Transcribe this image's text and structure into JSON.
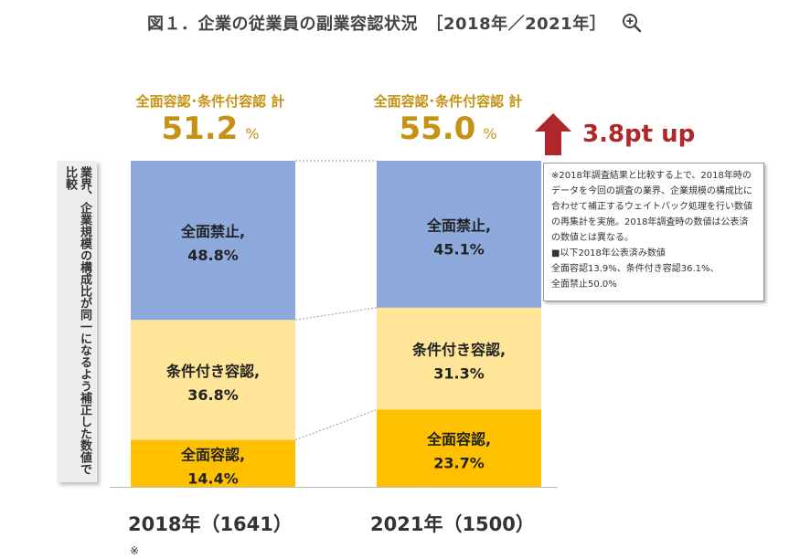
{
  "title": "図１．企業の従業員の副業容認状況　［2018年／2021年］",
  "totals": [
    {
      "label": "全面容認･条件付容認 計",
      "value": "51.2",
      "unit": "%"
    },
    {
      "label": "全面容認･条件付容認 計",
      "value": "55.0",
      "unit": "%"
    }
  ],
  "change": {
    "text": "3.8pt up",
    "arrow_color": "#b0262a"
  },
  "side_note": "業界、企業規模の構成比が同一になるよう補正した数値で比較",
  "note_box": [
    "※2018年調査結果と比較する上で、2018年時のデータを今回の調査の業界、企業規模の構成比に合わせて補正するウェイトバック処理を行い数値の再集計を実施。2018年調査時の数値は公表済の数値とは異なる。",
    "■以下2018年公表済み数値",
    "全面容認13.9%、条件付き容認36.1%、",
    "全面禁止50.0%"
  ],
  "x_labels": [
    {
      "text": "2018年（1641）",
      "mark": "※"
    },
    {
      "text": "2021年（1500）",
      "mark": ""
    }
  ],
  "colors": {
    "prohibited": "#8eaadc",
    "conditional": "#fee598",
    "full": "#ffc000",
    "total_text": "#c69214"
  },
  "chart_data": {
    "type": "bar",
    "stacked": true,
    "categories": [
      "2018年（1641）",
      "2021年（1500）"
    ],
    "series": [
      {
        "name": "全面容認",
        "values": [
          14.4,
          23.7
        ],
        "label_name": "全面容認,",
        "color": "#ffc000"
      },
      {
        "name": "条件付き容認",
        "values": [
          36.8,
          31.3
        ],
        "label_name": "条件付き容認,",
        "color": "#fee598"
      },
      {
        "name": "全面禁止",
        "values": [
          48.8,
          45.1
        ],
        "label_name": "全面禁止,",
        "color": "#8eaadc"
      }
    ],
    "ylim": [
      0,
      100
    ]
  }
}
